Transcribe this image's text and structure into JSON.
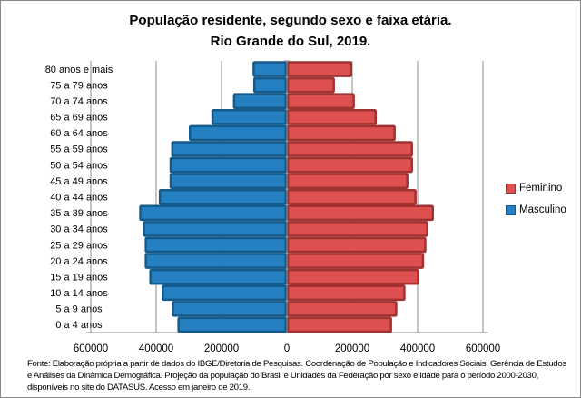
{
  "chart_data": {
    "type": "bar",
    "orientation": "horizontal-pyramid",
    "title": [
      "População residente, segundo sexo e faixa etária.",
      "Rio Grande do Sul, 2019."
    ],
    "categories": [
      "0 a 4 anos",
      "5 a 9 anos",
      "10 a 14 anos",
      "15 a 19 anos",
      "20 a 24 anos",
      "25 a 29 anos",
      "30 a 34 anos",
      "35 a 39 anos",
      "40 a 44 anos",
      "45 a 49 anos",
      "50 a 54 anos",
      "55 a 59 anos",
      "60 a 64 anos",
      "65 a 69 anos",
      "70 a 74 anos",
      "75 a 79 anos",
      "80 anos e mais"
    ],
    "series": [
      {
        "name": "Masculino",
        "color": "#2480c0",
        "border": "#145a8a",
        "side": "left",
        "values": [
          335000,
          352000,
          383000,
          421000,
          435000,
          435000,
          441000,
          452000,
          392000,
          359000,
          359000,
          354000,
          300000,
          231000,
          165000,
          103000,
          105000
        ]
      },
      {
        "name": "Feminino",
        "color": "#de5050",
        "border": "#a03232",
        "side": "right",
        "values": [
          322000,
          338000,
          363000,
          405000,
          420000,
          427000,
          433000,
          450000,
          397000,
          372000,
          386000,
          386000,
          333000,
          275000,
          208000,
          147000,
          200000
        ]
      }
    ],
    "xlim": [
      -600000,
      600000
    ],
    "xticks": [
      "600000",
      "400000",
      "200000",
      "0",
      "200000",
      "400000",
      "600000"
    ],
    "grid": true,
    "legend_position": "right",
    "footer": "Fonte:  Elaboração própria a partir de dados  do  IBGE/Diretoria de Pesquisas. Coordenação de População e Indicadores Sociais. Gerência de Estudos e Análises da Dinâmica Demográfica. Projeção da população do Brasil e Unidades da Federação por sexo e idade para o período 2000-2030, disponíveis no site do DATASUS. Acesso em  janeiro de 2019."
  }
}
